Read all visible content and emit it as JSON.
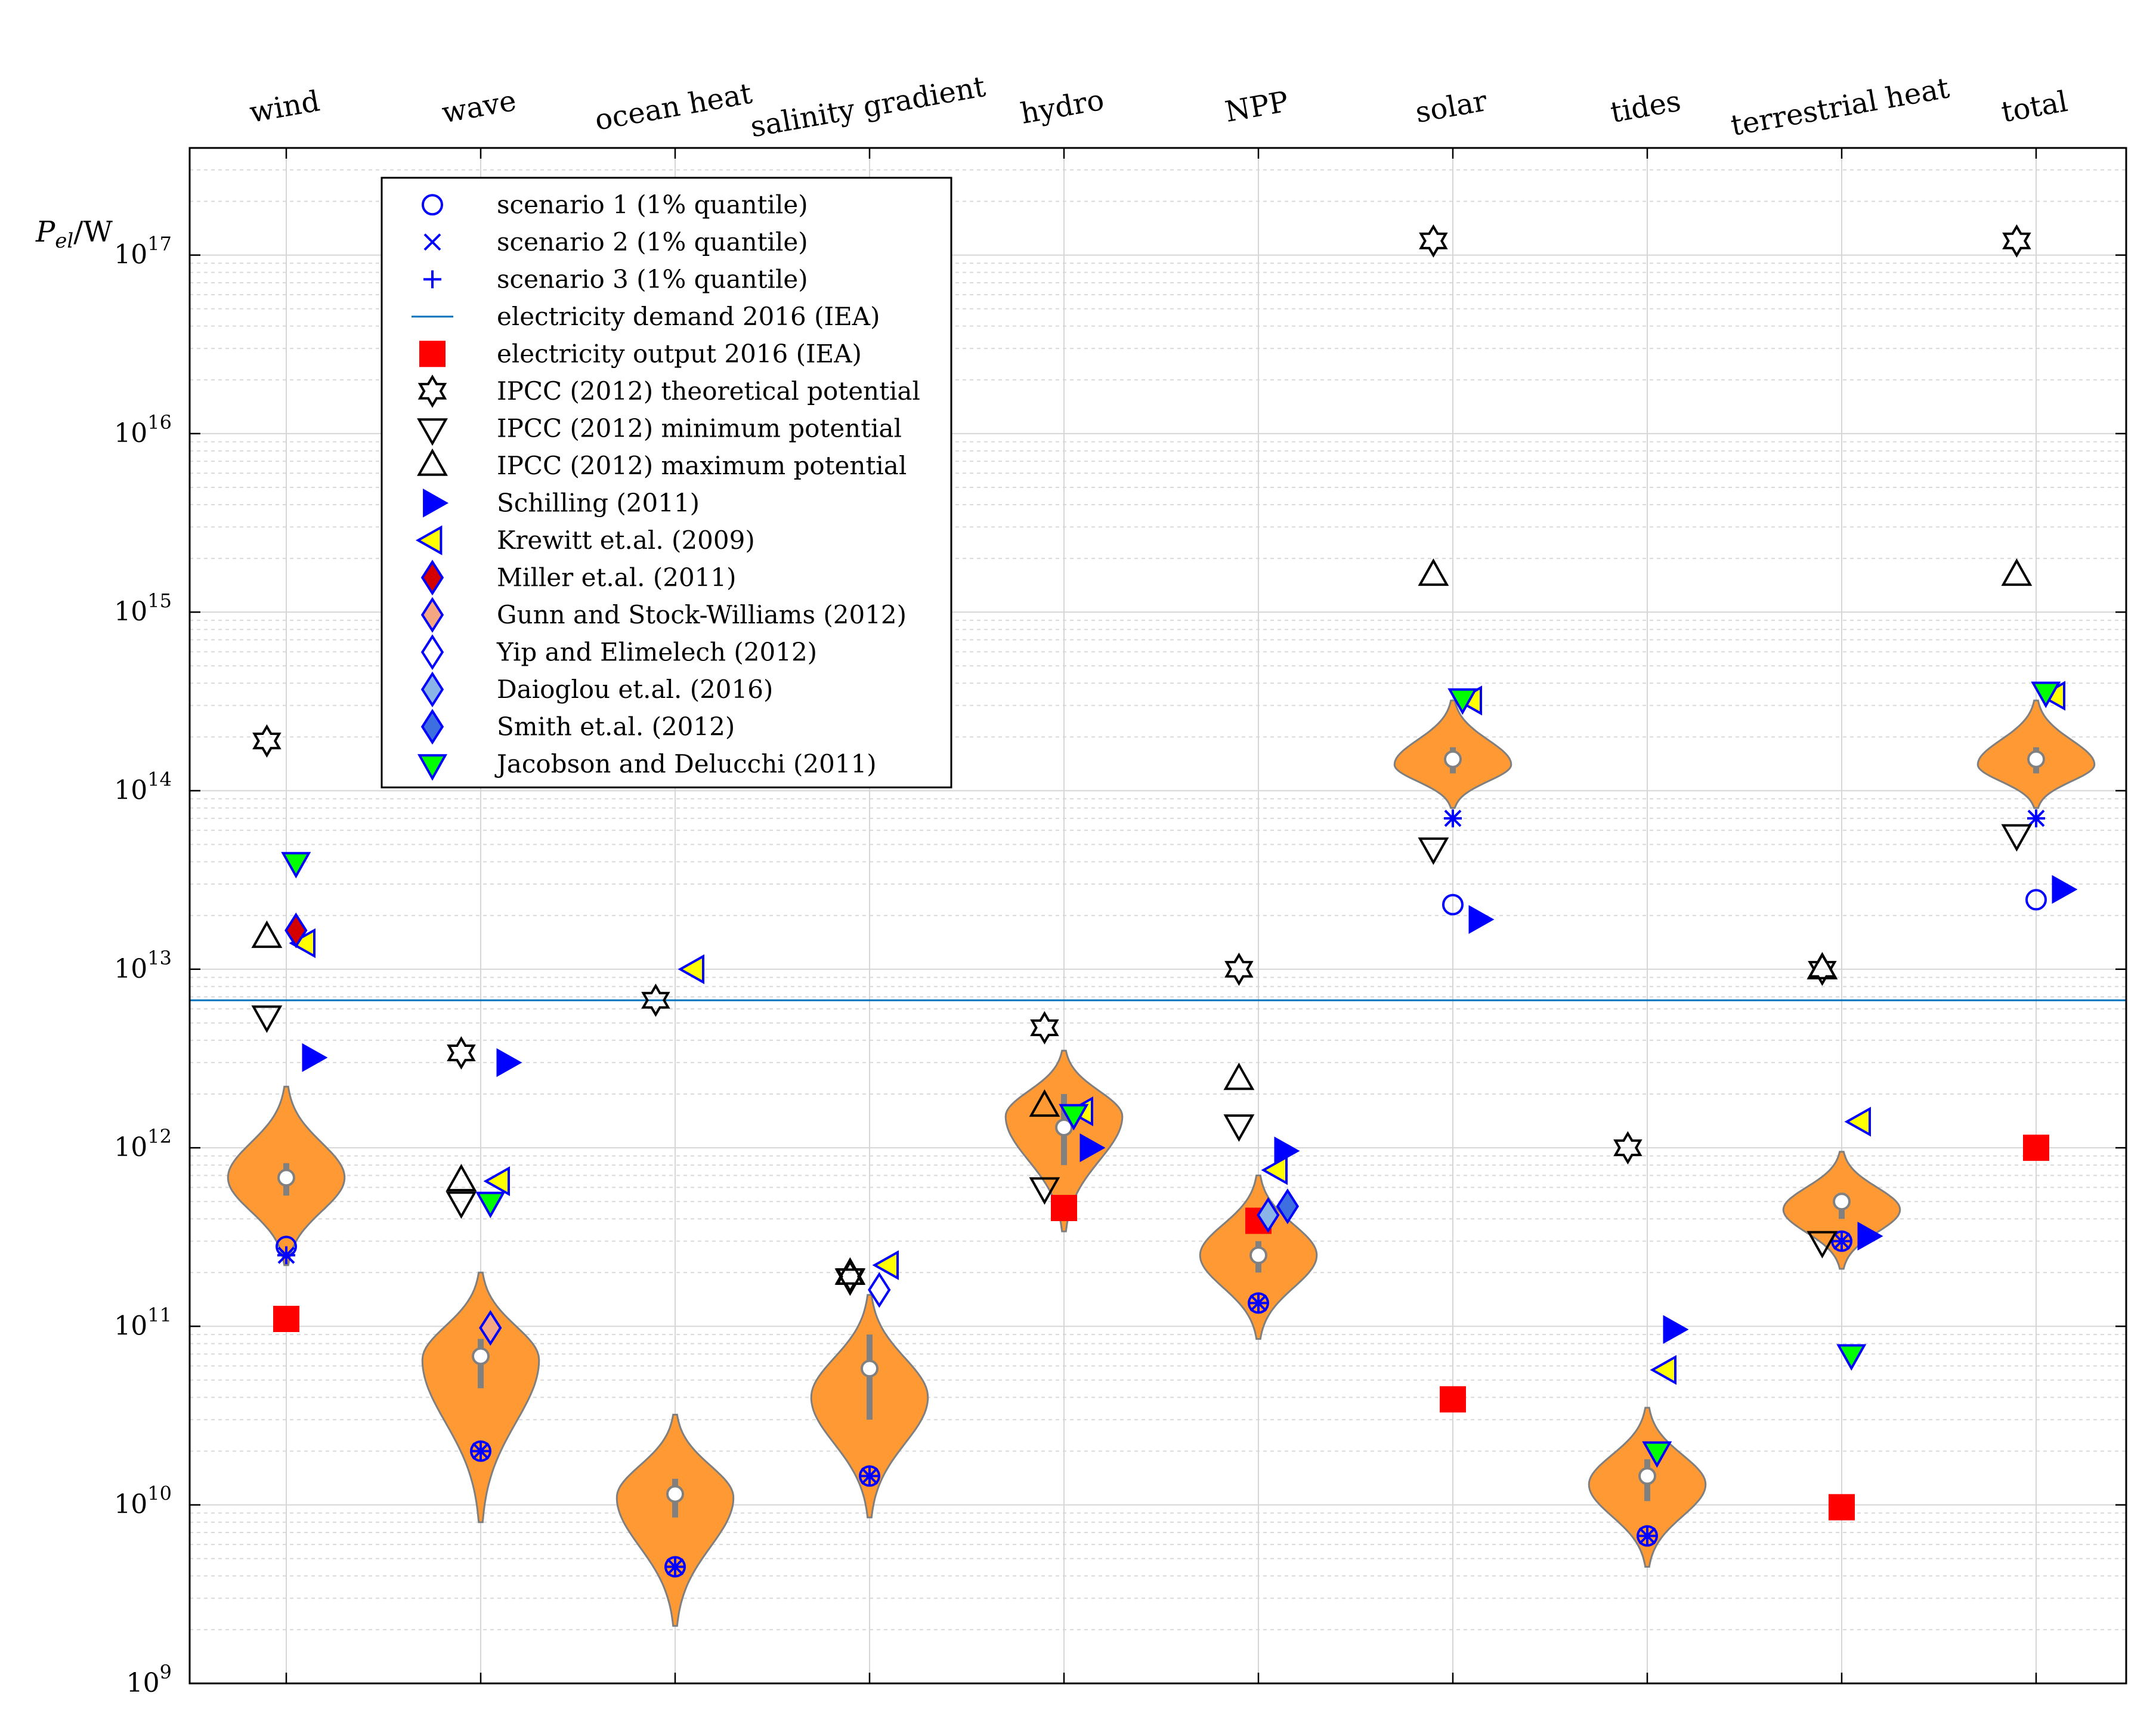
{
  "chart_data": {
    "type": "violin-scatter",
    "title": "",
    "ylabel_main": "P",
    "ylabel_sub": "el",
    "ylabel_unit": "/W",
    "yscale": "log",
    "ylim_exp": [
      9,
      17.6
    ],
    "ytick_exps": [
      9,
      10,
      11,
      12,
      13,
      14,
      15,
      16,
      17
    ],
    "ytick_base": "10",
    "categories": [
      "wind",
      "wave",
      "ocean heat",
      "salinity gradient",
      "hydro",
      "NPP",
      "solar",
      "tides",
      "terrestrial heat",
      "total"
    ],
    "reference_line": {
      "name": "electricity demand 2016 (IEA)",
      "value": 6700000000000.0,
      "color": "#0072BD"
    },
    "violins": [
      {
        "category": "wind",
        "min": 220000000000.0,
        "max": 2200000000000.0,
        "mode": 680000000000.0,
        "median": 680000000000.0,
        "q1": 540000000000.0,
        "q3": 820000000000.0,
        "width": 0.6
      },
      {
        "category": "wave",
        "min": 8000000000.0,
        "max": 200000000000.0,
        "mode": 65000000000.0,
        "median": 68000000000.0,
        "q1": 45000000000.0,
        "q3": 85000000000.0,
        "width": 0.6
      },
      {
        "category": "ocean heat",
        "min": 2100000000.0,
        "max": 32000000000.0,
        "mode": 11000000000.0,
        "median": 11500000000.0,
        "q1": 8500000000.0,
        "q3": 14000000000.0,
        "width": 0.6
      },
      {
        "category": "salinity gradient",
        "min": 8500000000.0,
        "max": 150000000000.0,
        "mode": 40000000000.0,
        "median": 58000000000.0,
        "q1": 30000000000.0,
        "q3": 90000000000.0,
        "width": 0.6
      },
      {
        "category": "hydro",
        "min": 340000000000.0,
        "max": 3500000000000.0,
        "mode": 1500000000000.0,
        "median": 1300000000000.0,
        "q1": 800000000000.0,
        "q3": 2000000000000.0,
        "width": 0.6
      },
      {
        "category": "NPP",
        "min": 85000000000.0,
        "max": 700000000000.0,
        "mode": 250000000000.0,
        "median": 250000000000.0,
        "q1": 200000000000.0,
        "q3": 300000000000.0,
        "width": 0.6
      },
      {
        "category": "solar",
        "min": 80000000000000.0,
        "max": 320000000000000.0,
        "mode": 140000000000000.0,
        "median": 150000000000000.0,
        "q1": 125000000000000.0,
        "q3": 175000000000000.0,
        "width": 0.6
      },
      {
        "category": "tides",
        "min": 4500000000.0,
        "max": 35000000000.0,
        "mode": 13000000000.0,
        "median": 14500000000.0,
        "q1": 10500000000.0,
        "q3": 18000000000.0,
        "width": 0.6
      },
      {
        "category": "terrestrial heat",
        "min": 210000000000.0,
        "max": 950000000000.0,
        "mode": 450000000000.0,
        "median": 500000000000.0,
        "q1": 400000000000.0,
        "q3": 560000000000.0,
        "width": 0.6
      },
      {
        "category": "total",
        "min": 80000000000000.0,
        "max": 320000000000000.0,
        "mode": 140000000000000.0,
        "median": 150000000000000.0,
        "q1": 125000000000000.0,
        "q3": 175000000000000.0,
        "width": 0.6
      }
    ],
    "legend": [
      {
        "key": "s1",
        "label": "scenario 1 (1% quantile)"
      },
      {
        "key": "s2",
        "label": "scenario 2 (1% quantile)"
      },
      {
        "key": "s3",
        "label": "scenario 3 (1% quantile)"
      },
      {
        "key": "demand",
        "label": "electricity demand 2016 (IEA)"
      },
      {
        "key": "output",
        "label": "electricity output 2016 (IEA)"
      },
      {
        "key": "ipcc_theo",
        "label": "IPCC (2012) theoretical potential"
      },
      {
        "key": "ipcc_min",
        "label": "IPCC (2012) minimum potential"
      },
      {
        "key": "ipcc_max",
        "label": "IPCC (2012) maximum potential"
      },
      {
        "key": "schilling",
        "label": "Schilling (2011)"
      },
      {
        "key": "krewitt",
        "label": "Krewitt et.al. (2009)"
      },
      {
        "key": "miller",
        "label": "Miller et.al. (2011)"
      },
      {
        "key": "gunn",
        "label": "Gunn and Stock-Williams (2012)"
      },
      {
        "key": "yip",
        "label": "Yip and Elimelech (2012)"
      },
      {
        "key": "daioglou",
        "label": "Daioglou et.al. (2016)"
      },
      {
        "key": "smith",
        "label": "Smith et.al. (2012)"
      },
      {
        "key": "jacobson",
        "label": "Jacobson and Delucchi (2011)"
      }
    ],
    "series": [
      {
        "key": "s1",
        "name": "scenario 1 (1% quantile)",
        "points": [
          {
            "cat": 0,
            "y": 280000000000.0
          },
          {
            "cat": 1,
            "y": 20000000000.0
          },
          {
            "cat": 2,
            "y": 4500000000.0
          },
          {
            "cat": 3,
            "y": 14500000000.0
          },
          {
            "cat": 5,
            "y": 135000000000.0
          },
          {
            "cat": 6,
            "y": 23000000000000.0
          },
          {
            "cat": 7,
            "y": 6700000000.0
          },
          {
            "cat": 8,
            "y": 300000000000.0
          },
          {
            "cat": 9,
            "y": 24500000000000.0
          }
        ]
      },
      {
        "key": "s2",
        "name": "scenario 2 (1% quantile)",
        "points": [
          {
            "cat": 0,
            "y": 250000000000.0
          },
          {
            "cat": 1,
            "y": 20000000000.0
          },
          {
            "cat": 2,
            "y": 4500000000.0
          },
          {
            "cat": 3,
            "y": 14500000000.0
          },
          {
            "cat": 5,
            "y": 135000000000.0
          },
          {
            "cat": 6,
            "y": 70000000000000.0
          },
          {
            "cat": 7,
            "y": 6700000000.0
          },
          {
            "cat": 8,
            "y": 300000000000.0
          },
          {
            "cat": 9,
            "y": 70000000000000.0
          }
        ]
      },
      {
        "key": "s3",
        "name": "scenario 3 (1% quantile)",
        "points": [
          {
            "cat": 0,
            "y": 250000000000.0
          },
          {
            "cat": 1,
            "y": 20000000000.0
          },
          {
            "cat": 2,
            "y": 4500000000.0
          },
          {
            "cat": 3,
            "y": 14500000000.0
          },
          {
            "cat": 5,
            "y": 135000000000.0
          },
          {
            "cat": 6,
            "y": 70000000000000.0
          },
          {
            "cat": 7,
            "y": 6700000000.0
          },
          {
            "cat": 8,
            "y": 300000000000.0
          },
          {
            "cat": 9,
            "y": 70000000000000.0
          }
        ]
      },
      {
        "key": "output",
        "name": "electricity output 2016 (IEA)",
        "points": [
          {
            "cat": 0,
            "y": 110000000000.0
          },
          {
            "cat": 4,
            "y": 460000000000.0
          },
          {
            "cat": 5,
            "y": 390000000000.0
          },
          {
            "cat": 6,
            "y": 39000000000.0
          },
          {
            "cat": 8,
            "y": 9700000000.0
          },
          {
            "cat": 9,
            "y": 1000000000000.0
          }
        ]
      },
      {
        "key": "ipcc_theo",
        "name": "IPCC (2012) theoretical potential",
        "points": [
          {
            "cat": 0,
            "y": 190000000000000.0,
            "dx": -0.1
          },
          {
            "cat": 1,
            "y": 3400000000000.0,
            "dx": -0.1
          },
          {
            "cat": 2,
            "y": 6700000000000.0,
            "dx": -0.1
          },
          {
            "cat": 3,
            "y": 190000000000.0,
            "dx": -0.1
          },
          {
            "cat": 4,
            "y": 4700000000000.0,
            "dx": -0.1
          },
          {
            "cat": 5,
            "y": 10000000000000.0,
            "dx": -0.1
          },
          {
            "cat": 6,
            "y": 1.2e+17,
            "dx": -0.1
          },
          {
            "cat": 7,
            "y": 1000000000000.0,
            "dx": -0.1
          },
          {
            "cat": 8,
            "y": 10000000000000.0,
            "dx": -0.1
          },
          {
            "cat": 9,
            "y": 1.2e+17,
            "dx": -0.1
          }
        ]
      },
      {
        "key": "ipcc_min",
        "name": "IPCC (2012) minimum potential",
        "points": [
          {
            "cat": 0,
            "y": 5500000000000.0,
            "dx": -0.1
          },
          {
            "cat": 1,
            "y": 500000000000.0,
            "dx": -0.1
          },
          {
            "cat": 3,
            "y": 185000000000.0,
            "dx": -0.1
          },
          {
            "cat": 4,
            "y": 600000000000.0,
            "dx": -0.1
          },
          {
            "cat": 5,
            "y": 1350000000000.0,
            "dx": -0.1
          },
          {
            "cat": 6,
            "y": 48000000000000.0,
            "dx": -0.1
          },
          {
            "cat": 8,
            "y": 300000000000.0,
            "dx": -0.1
          },
          {
            "cat": 9,
            "y": 57000000000000.0,
            "dx": -0.1
          }
        ]
      },
      {
        "key": "ipcc_max",
        "name": "IPCC (2012) maximum potential",
        "points": [
          {
            "cat": 0,
            "y": 15000000000000.0,
            "dx": -0.1
          },
          {
            "cat": 1,
            "y": 650000000000.0,
            "dx": -0.1
          },
          {
            "cat": 3,
            "y": 195000000000.0,
            "dx": -0.1
          },
          {
            "cat": 4,
            "y": 1700000000000.0,
            "dx": -0.1
          },
          {
            "cat": 5,
            "y": 2400000000000.0,
            "dx": -0.1
          },
          {
            "cat": 6,
            "y": 1600000000000000.0,
            "dx": -0.1
          },
          {
            "cat": 8,
            "y": 10000000000000.0,
            "dx": -0.1
          },
          {
            "cat": 9,
            "y": 1600000000000000.0,
            "dx": -0.1
          }
        ]
      },
      {
        "key": "schilling",
        "name": "Schilling (2011)",
        "points": [
          {
            "cat": 0,
            "y": 3200000000000.0,
            "dx": 0.13
          },
          {
            "cat": 1,
            "y": 3000000000000.0,
            "dx": 0.13
          },
          {
            "cat": 4,
            "y": 1000000000000.0,
            "dx": 0.13
          },
          {
            "cat": 5,
            "y": 960000000000.0,
            "dx": 0.13
          },
          {
            "cat": 6,
            "y": 19000000000000.0,
            "dx": 0.13
          },
          {
            "cat": 7,
            "y": 96000000000.0,
            "dx": 0.13
          },
          {
            "cat": 8,
            "y": 320000000000.0,
            "dx": 0.13
          },
          {
            "cat": 9,
            "y": 28000000000000.0,
            "dx": 0.13
          }
        ]
      },
      {
        "key": "krewitt",
        "name": "Krewitt et.al. (2009)",
        "points": [
          {
            "cat": 0,
            "y": 14000000000000.0,
            "dx": 0.1
          },
          {
            "cat": 1,
            "y": 650000000000.0,
            "dx": 0.1
          },
          {
            "cat": 2,
            "y": 10000000000000.0,
            "dx": 0.1
          },
          {
            "cat": 3,
            "y": 220000000000.0,
            "dx": 0.1
          },
          {
            "cat": 4,
            "y": 1600000000000.0,
            "dx": 0.1
          },
          {
            "cat": 5,
            "y": 750000000000.0,
            "dx": 0.1
          },
          {
            "cat": 6,
            "y": 320000000000000.0,
            "dx": 0.1
          },
          {
            "cat": 7,
            "y": 57000000000.0,
            "dx": 0.1
          },
          {
            "cat": 8,
            "y": 1400000000000.0,
            "dx": 0.1
          },
          {
            "cat": 9,
            "y": 340000000000000.0,
            "dx": 0.1
          }
        ]
      },
      {
        "key": "miller",
        "name": "Miller et.al. (2011)",
        "points": [
          {
            "cat": 0,
            "y": 16500000000000.0,
            "dx": 0.05
          }
        ]
      },
      {
        "key": "gunn",
        "name": "Gunn and Stock-Williams (2012)",
        "points": [
          {
            "cat": 1,
            "y": 98000000000.0,
            "dx": 0.05
          }
        ]
      },
      {
        "key": "yip",
        "name": "Yip and Elimelech (2012)",
        "points": [
          {
            "cat": 3,
            "y": 160000000000.0,
            "dx": 0.05
          }
        ]
      },
      {
        "key": "daioglou",
        "name": "Daioglou et.al. (2016)",
        "points": [
          {
            "cat": 5,
            "y": 420000000000.0,
            "dx": 0.05
          }
        ]
      },
      {
        "key": "smith",
        "name": "Smith et.al. (2012)",
        "points": [
          {
            "cat": 5,
            "y": 470000000000.0,
            "dx": 0.15
          }
        ]
      },
      {
        "key": "jacobson",
        "name": "Jacobson and Delucchi (2011)",
        "points": [
          {
            "cat": 0,
            "y": 40000000000000.0,
            "dx": 0.05
          },
          {
            "cat": 1,
            "y": 500000000000.0,
            "dx": 0.05
          },
          {
            "cat": 4,
            "y": 1550000000000.0,
            "dx": 0.05
          },
          {
            "cat": 6,
            "y": 330000000000000.0,
            "dx": 0.05
          },
          {
            "cat": 7,
            "y": 20000000000.0,
            "dx": 0.05
          },
          {
            "cat": 8,
            "y": 70000000000.0,
            "dx": 0.05
          },
          {
            "cat": 9,
            "y": 360000000000000.0,
            "dx": 0.05
          }
        ]
      }
    ]
  }
}
